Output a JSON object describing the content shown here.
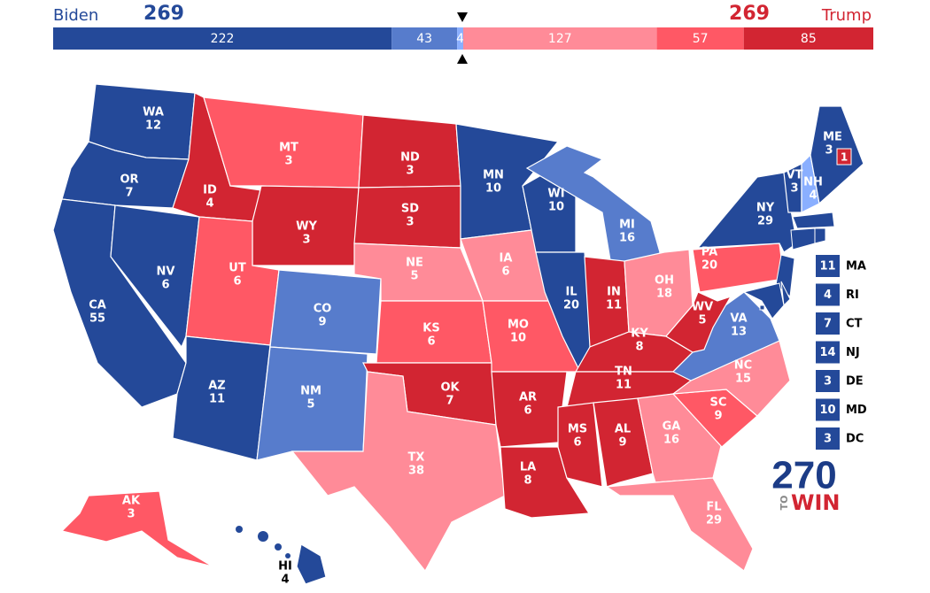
{
  "header": {
    "left_name": "Biden",
    "left_total": 269,
    "right_name": "Trump",
    "right_total": 269,
    "segments": [
      {
        "value": 222,
        "color": "#244999"
      },
      {
        "value": 43,
        "color": "#577ccc"
      },
      {
        "value": 4,
        "color": "#8aafff"
      },
      {
        "value": 127,
        "color": "#ff8b98"
      },
      {
        "value": 57,
        "color": "#ff5865"
      },
      {
        "value": 85,
        "color": "#d22532"
      }
    ]
  },
  "states": [
    {
      "abbr": "WA",
      "ev": 12,
      "color": "#244999"
    },
    {
      "abbr": "OR",
      "ev": 7,
      "color": "#244999"
    },
    {
      "abbr": "CA",
      "ev": 55,
      "color": "#244999"
    },
    {
      "abbr": "NV",
      "ev": 6,
      "color": "#244999"
    },
    {
      "abbr": "ID",
      "ev": 4,
      "color": "#d22532"
    },
    {
      "abbr": "MT",
      "ev": 3,
      "color": "#ff5865"
    },
    {
      "abbr": "WY",
      "ev": 3,
      "color": "#d22532"
    },
    {
      "abbr": "UT",
      "ev": 6,
      "color": "#ff5865"
    },
    {
      "abbr": "AZ",
      "ev": 11,
      "color": "#244999"
    },
    {
      "abbr": "CO",
      "ev": 9,
      "color": "#577ccc"
    },
    {
      "abbr": "NM",
      "ev": 5,
      "color": "#577ccc"
    },
    {
      "abbr": "ND",
      "ev": 3,
      "color": "#d22532"
    },
    {
      "abbr": "SD",
      "ev": 3,
      "color": "#d22532"
    },
    {
      "abbr": "NE",
      "ev": 5,
      "color": "#ff8b98"
    },
    {
      "abbr": "KS",
      "ev": 6,
      "color": "#ff5865"
    },
    {
      "abbr": "OK",
      "ev": 7,
      "color": "#d22532"
    },
    {
      "abbr": "TX",
      "ev": 38,
      "color": "#ff8b98"
    },
    {
      "abbr": "MN",
      "ev": 10,
      "color": "#244999"
    },
    {
      "abbr": "IA",
      "ev": 6,
      "color": "#ff8b98"
    },
    {
      "abbr": "MO",
      "ev": 10,
      "color": "#ff5865"
    },
    {
      "abbr": "AR",
      "ev": 6,
      "color": "#d22532"
    },
    {
      "abbr": "LA",
      "ev": 8,
      "color": "#d22532"
    },
    {
      "abbr": "WI",
      "ev": 10,
      "color": "#244999"
    },
    {
      "abbr": "IL",
      "ev": 20,
      "color": "#244999"
    },
    {
      "abbr": "MI",
      "ev": 16,
      "color": "#577ccc"
    },
    {
      "abbr": "IN",
      "ev": 11,
      "color": "#d22532"
    },
    {
      "abbr": "OH",
      "ev": 18,
      "color": "#ff8b98"
    },
    {
      "abbr": "KY",
      "ev": 8,
      "color": "#d22532"
    },
    {
      "abbr": "TN",
      "ev": 11,
      "color": "#d22532"
    },
    {
      "abbr": "MS",
      "ev": 6,
      "color": "#d22532"
    },
    {
      "abbr": "AL",
      "ev": 9,
      "color": "#d22532"
    },
    {
      "abbr": "GA",
      "ev": 16,
      "color": "#ff8b98"
    },
    {
      "abbr": "FL",
      "ev": 29,
      "color": "#ff8b98"
    },
    {
      "abbr": "SC",
      "ev": 9,
      "color": "#ff5865"
    },
    {
      "abbr": "NC",
      "ev": 15,
      "color": "#ff8b98"
    },
    {
      "abbr": "VA",
      "ev": 13,
      "color": "#577ccc"
    },
    {
      "abbr": "WV",
      "ev": 5,
      "color": "#d22532"
    },
    {
      "abbr": "PA",
      "ev": 20,
      "color": "#ff5865"
    },
    {
      "abbr": "NY",
      "ev": 29,
      "color": "#244999"
    },
    {
      "abbr": "VT",
      "ev": 3,
      "color": "#244999"
    },
    {
      "abbr": "NH",
      "ev": 4,
      "color": "#8aafff"
    },
    {
      "abbr": "ME",
      "ev": 3,
      "color": "#244999"
    },
    {
      "abbr": "AK",
      "ev": 3,
      "color": "#ff5865"
    },
    {
      "abbr": "HI",
      "ev": 4,
      "color": "#244999"
    }
  ],
  "maine_district": {
    "ev": 1,
    "color": "#d22532"
  },
  "callouts": [
    {
      "abbr": "MA",
      "ev": 11,
      "color": "#244999"
    },
    {
      "abbr": "RI",
      "ev": 4,
      "color": "#244999"
    },
    {
      "abbr": "CT",
      "ev": 7,
      "color": "#244999"
    },
    {
      "abbr": "NJ",
      "ev": 14,
      "color": "#244999"
    },
    {
      "abbr": "DE",
      "ev": 3,
      "color": "#244999"
    },
    {
      "abbr": "MD",
      "ev": 10,
      "color": "#244999"
    },
    {
      "abbr": "DC",
      "ev": 3,
      "color": "#244999"
    }
  ],
  "logo": {
    "number": "270",
    "to": "TO",
    "win": "WIN"
  }
}
